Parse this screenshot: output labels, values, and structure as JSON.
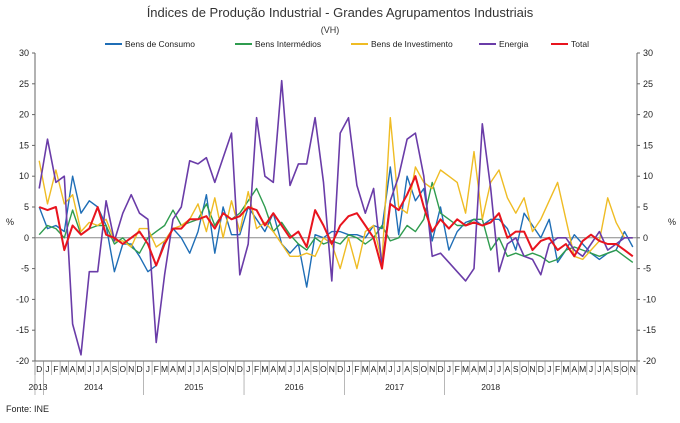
{
  "chart_data": {
    "type": "line",
    "title": "Índices de Produção Industrial - Grandes Agrupamentos Industriais",
    "subtitle": "(VH)",
    "ylabel_left": "%",
    "ylabel_right": "%",
    "ylim": [
      -20,
      30
    ],
    "ylim_right": [
      -20,
      30
    ],
    "y_ticks": [
      -20,
      -15,
      -10,
      -5,
      0,
      5,
      10,
      15,
      20,
      25,
      30
    ],
    "source": "Fonte: INE",
    "grid": false,
    "legend_position": "top",
    "months": [
      "D",
      "J",
      "F",
      "M",
      "A",
      "M",
      "J",
      "J",
      "A",
      "S",
      "O",
      "N",
      "D",
      "J",
      "F",
      "M",
      "A",
      "M",
      "J",
      "J",
      "A",
      "S",
      "O",
      "N",
      "D",
      "J",
      "F",
      "M",
      "A",
      "M",
      "J",
      "J",
      "A",
      "S",
      "O",
      "N",
      "D",
      "J",
      "F",
      "M",
      "A",
      "M",
      "J",
      "J",
      "A",
      "S",
      "O",
      "N",
      "D",
      "J",
      "F",
      "M",
      "A",
      "M",
      "J",
      "J",
      "A",
      "S",
      "O",
      "N",
      "D",
      "J",
      "F",
      "M",
      "A",
      "M",
      "J",
      "J",
      "A",
      "S",
      "O",
      "N"
    ],
    "years": [
      {
        "label": "2013",
        "start": 0,
        "end": 0
      },
      {
        "label": "2014",
        "start": 1,
        "end": 12
      },
      {
        "label": "2015",
        "start": 13,
        "end": 24
      },
      {
        "label": "2016",
        "start": 25,
        "end": 36
      },
      {
        "label": "2017",
        "start": 37,
        "end": 48
      },
      {
        "label": "2018",
        "start": 49,
        "end": 59
      }
    ],
    "series": [
      {
        "name": "Bens de Consumo",
        "color": "#1f6eb6",
        "width": 1.4,
        "values": [
          5,
          1.5,
          2,
          1,
          10,
          4,
          6,
          5,
          2,
          -5.5,
          -1,
          -1,
          -3,
          -5.5,
          -4.5,
          -0.5,
          1.5,
          0,
          -2.5,
          1,
          7,
          -2.5,
          5,
          0.5,
          0.5,
          5,
          3,
          1,
          4,
          -1,
          -2.5,
          -1,
          -8,
          0.5,
          0,
          1,
          1,
          0.5,
          0.5,
          0,
          2,
          1.5,
          11.5,
          0.5,
          10,
          6,
          8,
          -0.5,
          5,
          -2,
          1,
          2.5,
          3,
          2,
          3,
          3,
          1.5,
          -2,
          4,
          2,
          0,
          3,
          -4,
          -2,
          0.5,
          -1,
          -2.5,
          -3.5,
          -2.5,
          -2,
          1,
          -1.5
        ]
      },
      {
        "name": "Bens Intermédios",
        "color": "#2f9c4f",
        "width": 1.4,
        "values": [
          0.5,
          2,
          1.5,
          0,
          4.5,
          0.5,
          1.5,
          2,
          2,
          -1,
          0,
          -1.5,
          -2.5,
          0,
          1,
          2,
          4.5,
          2,
          2.5,
          3,
          5.5,
          2,
          4,
          3,
          4,
          6,
          8,
          5,
          1,
          2.5,
          0.5,
          -1,
          -2,
          0,
          -1,
          -0.5,
          -1,
          0.5,
          0,
          -1,
          0,
          2,
          -0.5,
          0,
          2,
          1,
          3,
          9,
          4,
          3,
          2,
          2,
          3,
          3,
          -2,
          0,
          -3,
          -2.5,
          -3,
          -2.5,
          -3,
          -4,
          -3.5,
          -2,
          -1.5,
          -2,
          -2.5,
          -3,
          -2.5,
          -2,
          -3,
          -4
        ]
      },
      {
        "name": "Bens de Investimento",
        "color": "#efbc24",
        "width": 1.4,
        "values": [
          12.5,
          5.5,
          11,
          5.5,
          7,
          1,
          2.5,
          2,
          3,
          -0.5,
          -0.5,
          -1.5,
          1.5,
          1.5,
          -1.5,
          -0.5,
          1.5,
          2,
          3,
          5.5,
          1,
          6.5,
          0,
          6,
          1,
          7.5,
          1.5,
          2.5,
          1,
          -1,
          -3,
          -3,
          -2.5,
          -3,
          0,
          -1,
          -5,
          0,
          -5,
          1,
          2,
          -4,
          19.5,
          5,
          4,
          11.5,
          9,
          8,
          11,
          10,
          9,
          4,
          14,
          3,
          9,
          11,
          6.5,
          4,
          6.5,
          1,
          3,
          6,
          9,
          3,
          -3,
          -3.5,
          -2,
          -0.5,
          6.5,
          2.5,
          0,
          0
        ]
      },
      {
        "name": "Energia",
        "color": "#6a3ca8",
        "width": 1.6,
        "values": [
          8,
          16,
          9,
          10,
          -14,
          -19,
          -5.5,
          -5.5,
          6,
          -0.5,
          4,
          7,
          4,
          3,
          -17,
          -6,
          3,
          5,
          12.5,
          12,
          13,
          9,
          13,
          17,
          -6,
          -1,
          19.5,
          10,
          9,
          25.5,
          8.5,
          12,
          12,
          19.5,
          9,
          -7,
          17,
          19.5,
          8.5,
          4,
          8,
          -4.5,
          6,
          10,
          16,
          17,
          10,
          -3,
          -2.5,
          -4,
          -5.5,
          -7,
          -5,
          18.5,
          8,
          -5.5,
          -1,
          0,
          -3,
          -3.5,
          -6,
          -1,
          0,
          0,
          -2,
          -3,
          -1,
          1,
          -2,
          -1,
          0,
          0
        ]
      },
      {
        "name": "Total",
        "color": "#e8141e",
        "width": 2,
        "values": [
          5,
          4.5,
          5,
          -2,
          2,
          0.5,
          1.5,
          5,
          0.5,
          0,
          -1,
          0,
          1,
          -1,
          -4.5,
          -1,
          1.5,
          1.5,
          3,
          3,
          3.5,
          1.5,
          4,
          3,
          3.5,
          5,
          4.5,
          2,
          4,
          2,
          0,
          1,
          -1.5,
          4.5,
          2,
          -1,
          2,
          3.5,
          4,
          2,
          0,
          -5,
          5.5,
          4.5,
          7,
          10,
          5,
          1,
          3,
          1.5,
          3,
          2,
          2.5,
          2,
          2.5,
          4,
          0,
          1,
          1,
          -2,
          -0.5,
          0,
          -2,
          -1,
          -3,
          -0.5,
          0.5,
          -0.5,
          -1,
          -1,
          -2,
          -3
        ]
      }
    ]
  }
}
